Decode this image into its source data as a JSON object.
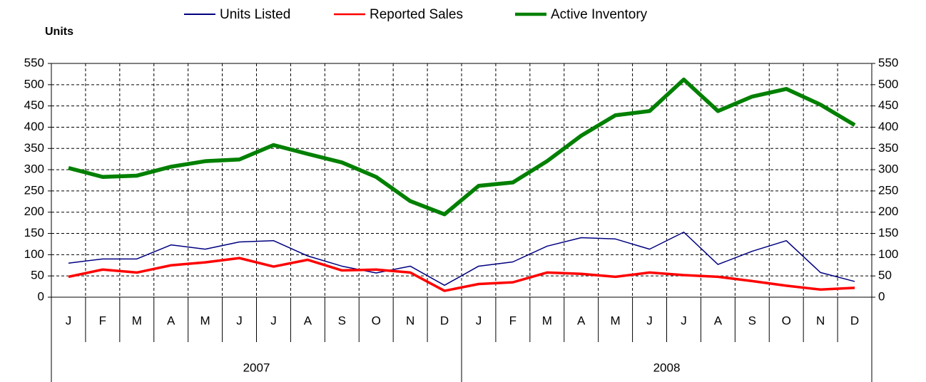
{
  "chart_data": {
    "type": "line",
    "y_label": "Units",
    "categories": [
      "J",
      "F",
      "M",
      "A",
      "M",
      "J",
      "J",
      "A",
      "S",
      "O",
      "N",
      "D",
      "J",
      "F",
      "M",
      "A",
      "M",
      "J",
      "J",
      "A",
      "S",
      "O",
      "N",
      "D"
    ],
    "x_groups": [
      "2007",
      "2008"
    ],
    "series": [
      {
        "name": "Units Listed",
        "color": "#000080",
        "width": 1.5,
        "values": [
          80,
          90,
          90,
          123,
          113,
          130,
          133,
          97,
          73,
          57,
          73,
          28,
          73,
          83,
          120,
          140,
          137,
          113,
          153,
          77,
          108,
          133,
          58,
          37
        ]
      },
      {
        "name": "Reported Sales",
        "color": "#ff0000",
        "width": 3.5,
        "values": [
          48,
          65,
          58,
          75,
          82,
          92,
          72,
          88,
          63,
          65,
          58,
          15,
          31,
          35,
          58,
          55,
          48,
          58,
          52,
          48,
          38,
          27,
          18,
          22
        ]
      },
      {
        "name": "Active Inventory",
        "color": "#008000",
        "width": 5.5,
        "values": [
          304,
          283,
          286,
          307,
          320,
          324,
          358,
          337,
          317,
          283,
          226,
          195,
          262,
          270,
          320,
          380,
          428,
          438,
          512,
          438,
          472,
          490,
          453,
          405
        ]
      }
    ],
    "ylim": [
      0,
      550
    ],
    "yticks": [
      0,
      50,
      100,
      150,
      200,
      250,
      300,
      350,
      400,
      450,
      500,
      550
    ],
    "y2lim": [
      0,
      550
    ],
    "y2ticks": [
      0,
      50,
      100,
      150,
      200,
      250,
      300,
      350,
      400,
      450,
      500,
      550
    ],
    "grid": true
  }
}
